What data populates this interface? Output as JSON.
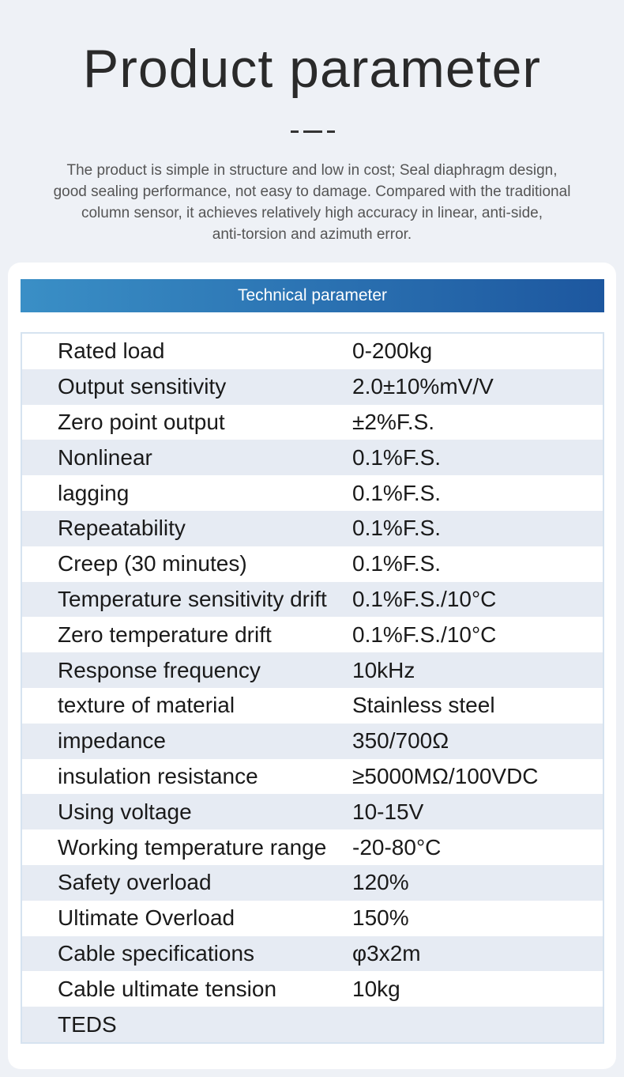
{
  "header": {
    "title": "Product parameter",
    "description": [
      "The product is simple in structure and low in cost; Seal diaphragm design,",
      "good sealing performance, not easy to damage. Compared with the traditional",
      "column sensor, it achieves relatively high accuracy in linear, anti-side,",
      "anti-torsion and azimuth error."
    ]
  },
  "table": {
    "title": "Technical parameter",
    "rows": [
      [
        "Rated load",
        "0-200kg"
      ],
      [
        "Output sensitivity",
        "2.0±10%mV/V"
      ],
      [
        "Zero point output",
        "±2%F.S."
      ],
      [
        "Nonlinear",
        "0.1%F.S."
      ],
      [
        "lagging",
        "0.1%F.S."
      ],
      [
        "Repeatability",
        "0.1%F.S."
      ],
      [
        "Creep (30 minutes)",
        "0.1%F.S."
      ],
      [
        "Temperature sensitivity drift",
        "0.1%F.S./10°C"
      ],
      [
        "Zero temperature drift",
        "0.1%F.S./10°C"
      ],
      [
        "Response frequency",
        "10kHz"
      ],
      [
        "texture of material",
        "Stainless steel"
      ],
      [
        "impedance",
        "350/700Ω"
      ],
      [
        "insulation resistance",
        "≥5000MΩ/100VDC"
      ],
      [
        "Using voltage",
        "10-15V"
      ],
      [
        "Working temperature range",
        "-20-80°C"
      ],
      [
        "Safety overload",
        "120%"
      ],
      [
        "Ultimate Overload",
        "150%"
      ],
      [
        "Cable specifications",
        "φ3x2m"
      ],
      [
        "Cable ultimate tension",
        "10kg"
      ],
      [
        "TEDS"
      ]
    ]
  }
}
